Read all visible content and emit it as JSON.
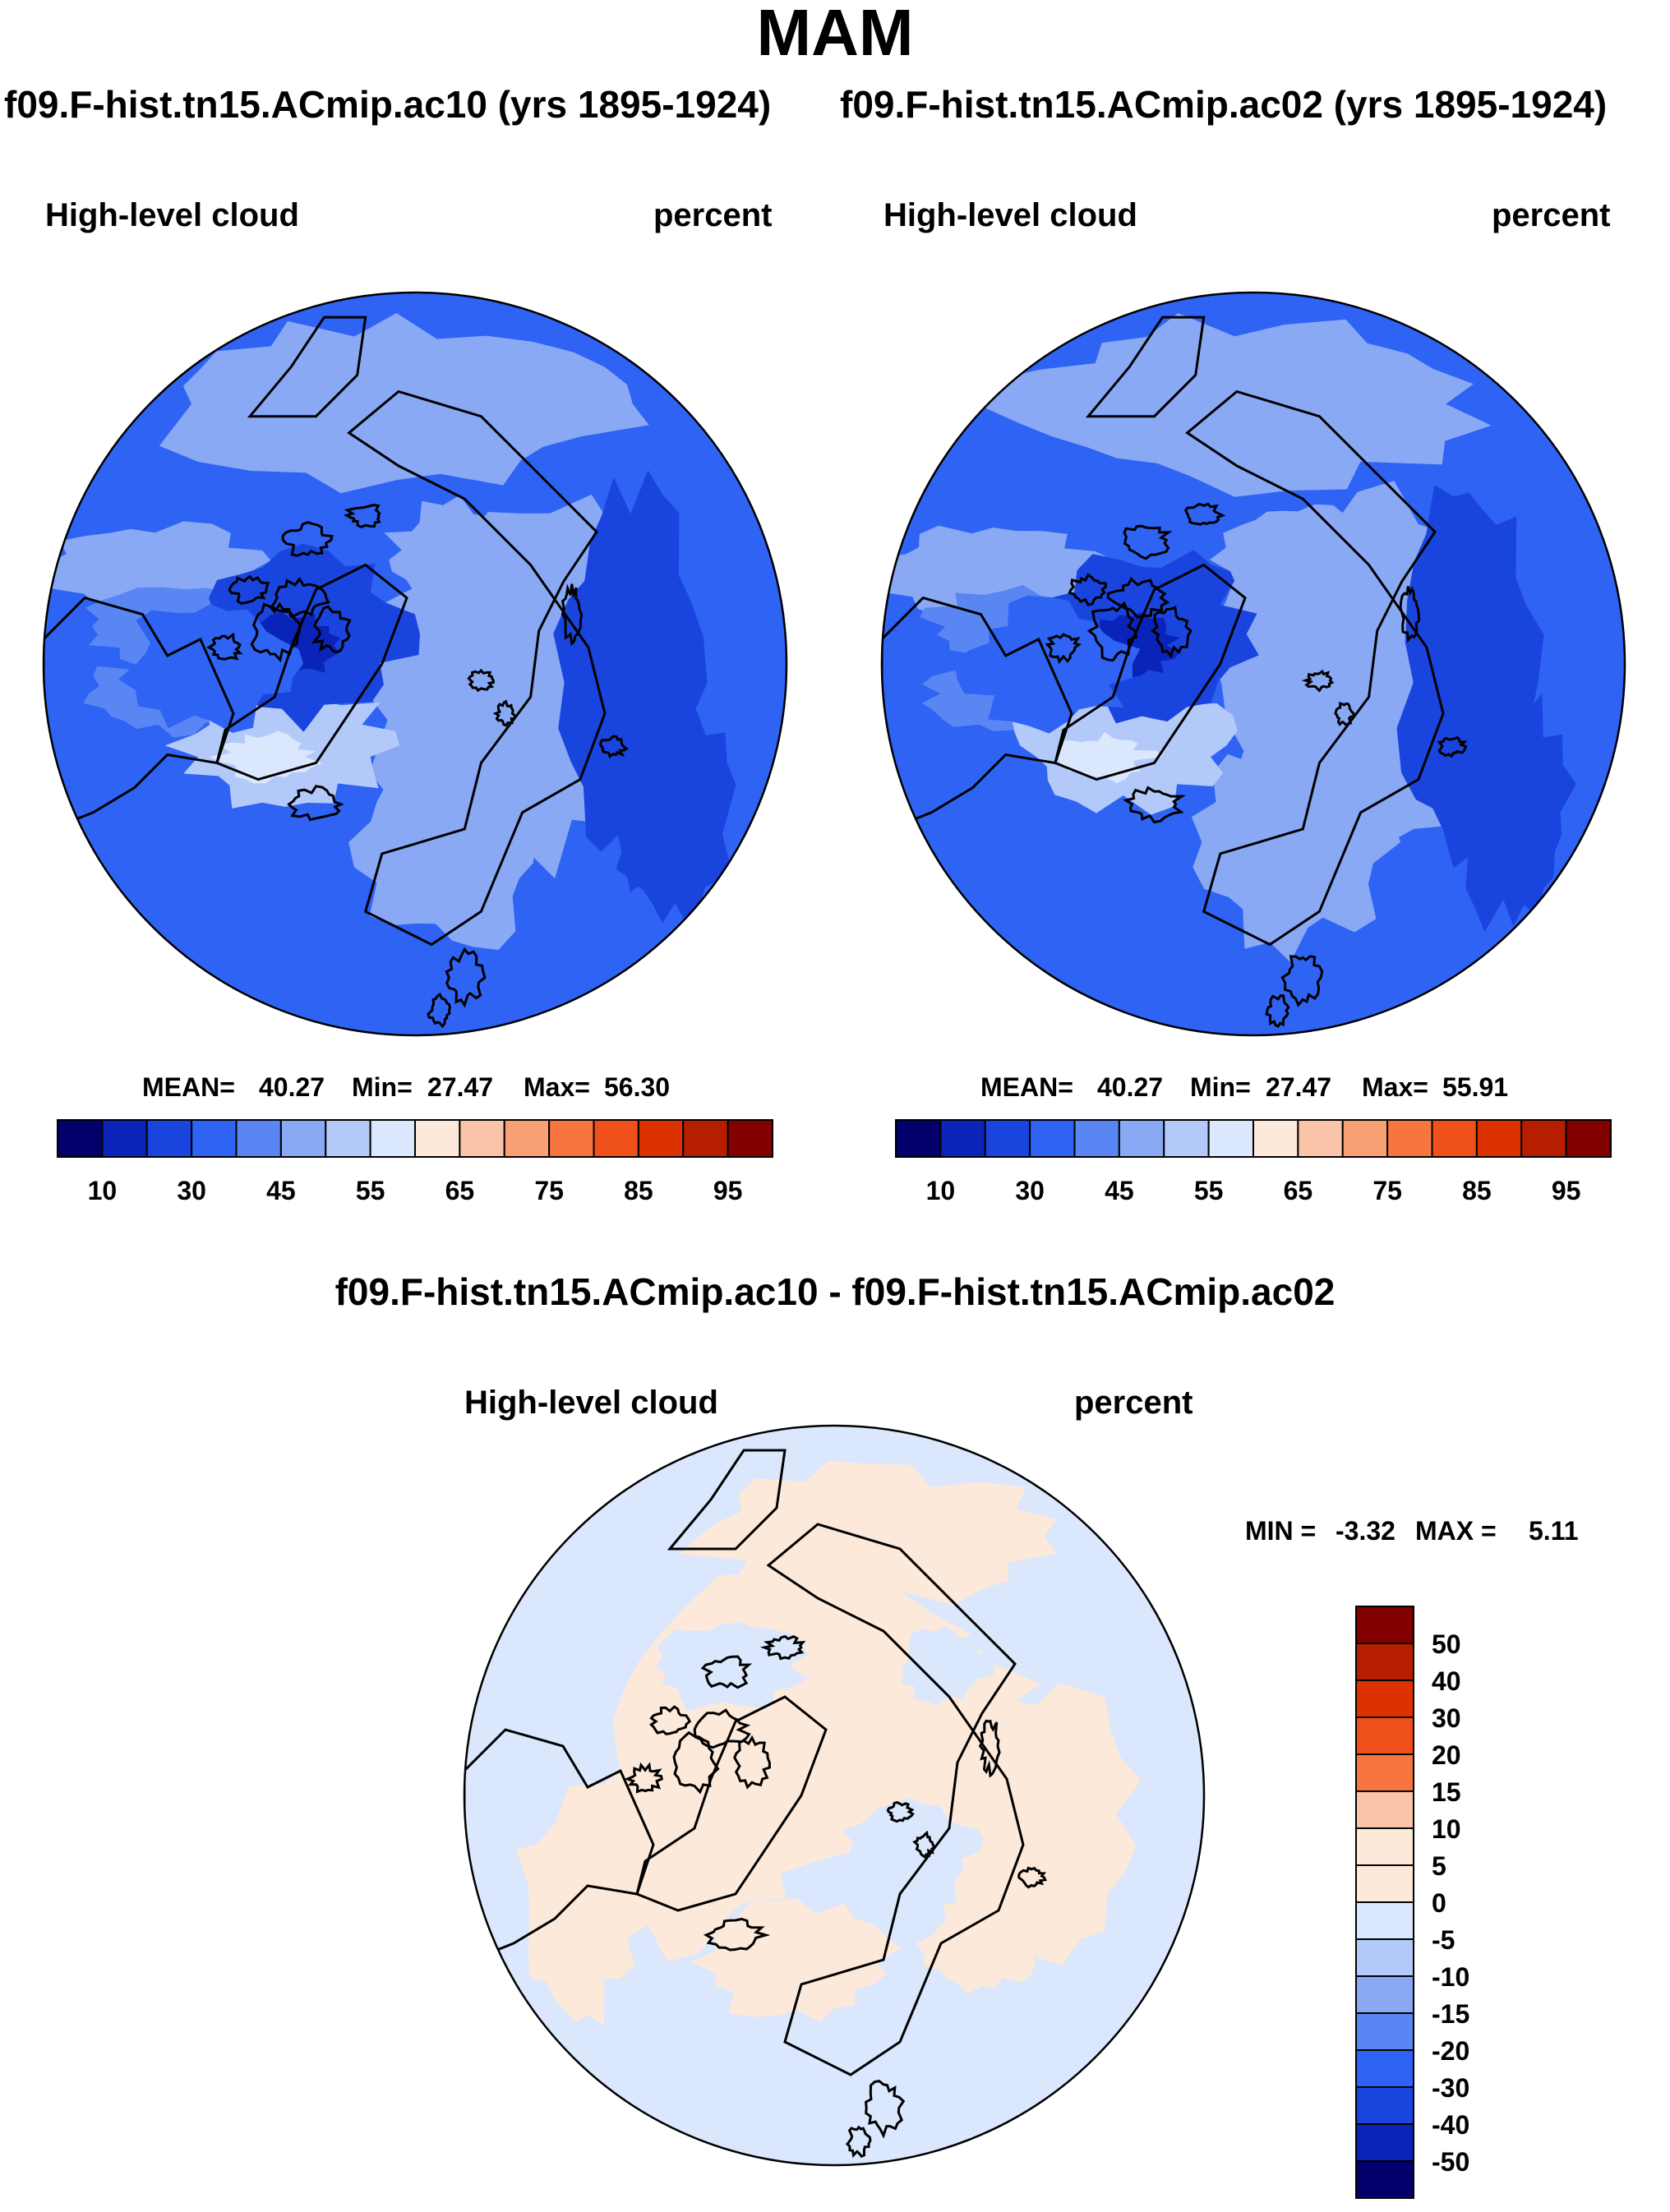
{
  "page": {
    "season": "MAM",
    "case_left_title": "f09.F-hist.tn15.ACmip.ac10 (yrs 1895-1924)",
    "case_right_title": "f09.F-hist.tn15.ACmip.ac02 (yrs 1895-1924)",
    "diff_title": "f09.F-hist.tn15.ACmip.ac10 - f09.F-hist.tn15.ACmip.ac02"
  },
  "chart_data": [
    {
      "type": "heatmap",
      "projection": "north-polar-stereographic",
      "case": "f09.F-hist.tn15.ACmip.ac10",
      "variable": "High-level cloud",
      "units": "percent",
      "stats": {
        "mean_label": "MEAN=",
        "mean": "40.27",
        "min_label": "Min=",
        "min": "27.47",
        "max_label": "Max=",
        "max": "56.30"
      },
      "levels": [
        5,
        10,
        20,
        30,
        40,
        45,
        50,
        55,
        60,
        65,
        70,
        75,
        80,
        85,
        90,
        95,
        100
      ],
      "colorbar_ticks": [
        "10",
        "30",
        "45",
        "55",
        "65",
        "75",
        "85",
        "95"
      ],
      "colors": [
        "#03006b",
        "#0a23b8",
        "#1a44de",
        "#2e63f4",
        "#5a86f4",
        "#89a9f5",
        "#b3c9f9",
        "#dbe7fc",
        "#fde9da",
        "#fac4a8",
        "#f9a175",
        "#f7763f",
        "#f0501a",
        "#dc3200",
        "#b51f00",
        "#820000"
      ],
      "value_range": [
        27.47,
        56.3
      ]
    },
    {
      "type": "heatmap",
      "projection": "north-polar-stereographic",
      "case": "f09.F-hist.tn15.ACmip.ac02",
      "variable": "High-level cloud",
      "units": "percent",
      "stats": {
        "mean_label": "MEAN=",
        "mean": "40.27",
        "min_label": "Min=",
        "min": "27.47",
        "max_label": "Max=",
        "max": "55.91"
      },
      "levels": [
        5,
        10,
        20,
        30,
        40,
        45,
        50,
        55,
        60,
        65,
        70,
        75,
        80,
        85,
        90,
        95,
        100
      ],
      "colorbar_ticks": [
        "10",
        "30",
        "45",
        "55",
        "65",
        "75",
        "85",
        "95"
      ],
      "colors": [
        "#03006b",
        "#0a23b8",
        "#1a44de",
        "#2e63f4",
        "#5a86f4",
        "#89a9f5",
        "#b3c9f9",
        "#dbe7fc",
        "#fde9da",
        "#fac4a8",
        "#f9a175",
        "#f7763f",
        "#f0501a",
        "#dc3200",
        "#b51f00",
        "#820000"
      ],
      "value_range": [
        27.47,
        55.91
      ]
    },
    {
      "type": "heatmap",
      "projection": "north-polar-stereographic",
      "case": "f09.F-hist.tn15.ACmip.ac10 - f09.F-hist.tn15.ACmip.ac02",
      "variable": "High-level cloud",
      "units": "percent",
      "stats": {
        "min_label": "MIN =",
        "min": "-3.32",
        "max_label": "MAX =",
        "max": "5.11"
      },
      "colorbar_ticks": [
        "50",
        "40",
        "30",
        "20",
        "15",
        "10",
        "5",
        "0",
        "-5",
        "-10",
        "-15",
        "-20",
        "-30",
        "-40",
        "-50"
      ],
      "colors": [
        "#820000",
        "#b51f00",
        "#dc3200",
        "#f0501a",
        "#f7763f",
        "#fac4a8",
        "#fde9da",
        "#fde9da",
        "#dbe7fc",
        "#b3c9f9",
        "#89a9f5",
        "#5a86f4",
        "#2e63f4",
        "#1a44de",
        "#0a23b8",
        "#03006b"
      ],
      "value_range": [
        -3.32,
        5.11
      ]
    }
  ]
}
